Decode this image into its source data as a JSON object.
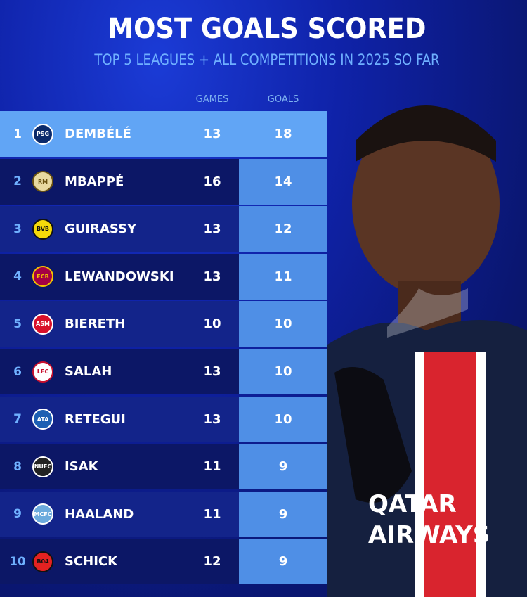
{
  "title": "MOST GOALS SCORED",
  "subtitle": "TOP 5 LEAGUES + ALL COMPETITIONS IN 2025 SO FAR",
  "columns": {
    "games": "GAMES",
    "goals": "GOALS"
  },
  "colors": {
    "highlight": "#61a5f5",
    "goals_cell": "#4f8fe6",
    "rank": "#6fb0ff",
    "row_dark": "#0c1766",
    "row_light": "#13248a"
  },
  "chart_data": {
    "type": "table",
    "title": "MOST GOALS SCORED",
    "subtitle": "TOP 5 LEAGUES + ALL COMPETITIONS IN 2025 SO FAR",
    "headers": [
      "GAMES",
      "GOALS"
    ],
    "rows": [
      {
        "rank": "1",
        "name": "DEMBÉLÉ",
        "club": "PSG",
        "crest": "PSG",
        "games": "13",
        "goals": "18"
      },
      {
        "rank": "2",
        "name": "MBAPPÉ",
        "club": "Real Madrid",
        "crest": "RM",
        "games": "16",
        "goals": "14"
      },
      {
        "rank": "3",
        "name": "GUIRASSY",
        "club": "Borussia Dortmund",
        "crest": "BVB",
        "games": "13",
        "goals": "12"
      },
      {
        "rank": "4",
        "name": "LEWANDOWSKI",
        "club": "Barcelona",
        "crest": "FCB",
        "games": "13",
        "goals": "11"
      },
      {
        "rank": "5",
        "name": "BIERETH",
        "club": "Monaco",
        "crest": "ASM",
        "games": "10",
        "goals": "10"
      },
      {
        "rank": "6",
        "name": "SALAH",
        "club": "Liverpool",
        "crest": "LFC",
        "games": "13",
        "goals": "10"
      },
      {
        "rank": "7",
        "name": "RETEGUI",
        "club": "Atalanta",
        "crest": "ATA",
        "games": "13",
        "goals": "10"
      },
      {
        "rank": "8",
        "name": "ISAK",
        "club": "Newcastle",
        "crest": "NUFC",
        "games": "11",
        "goals": "9"
      },
      {
        "rank": "9",
        "name": "HAALAND",
        "club": "Manchester City",
        "crest": "MCFC",
        "games": "11",
        "goals": "9"
      },
      {
        "rank": "10",
        "name": "SCHICK",
        "club": "Leverkusen",
        "crest": "B04",
        "games": "12",
        "goals": "9"
      }
    ]
  },
  "crest_colors": {
    "PSG": [
      "#0b2a6b",
      "#fff"
    ],
    "RM": [
      "#e8d9a0",
      "#6a5210"
    ],
    "BVB": [
      "#f5d90a",
      "#111"
    ],
    "FCB": [
      "#a50044",
      "#f3c300"
    ],
    "ASM": [
      "#d8102a",
      "#fff"
    ],
    "LFC": [
      "#ffffff",
      "#c8102e"
    ],
    "ATA": [
      "#1d5fb3",
      "#fff"
    ],
    "NUFC": [
      "#222",
      "#fff"
    ],
    "MCFC": [
      "#6cabdd",
      "#fff"
    ],
    "B04": [
      "#e32221",
      "#111"
    ]
  },
  "player_shirt_text": "QATAR AIRWAYS"
}
